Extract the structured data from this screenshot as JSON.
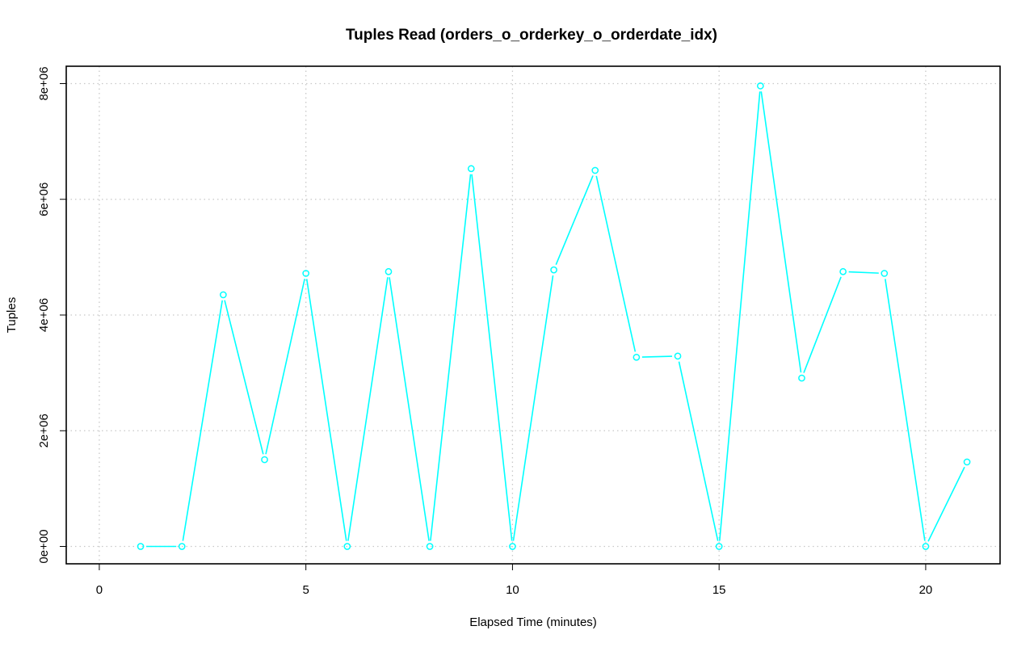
{
  "chart_data": {
    "type": "line",
    "title": "Tuples Read (orders_o_orderkey_o_orderdate_idx)",
    "xlabel": "Elapsed Time (minutes)",
    "ylabel": "Tuples",
    "xlim": [
      -0.8,
      21.8
    ],
    "ylim": [
      -300000,
      8300000
    ],
    "x_ticks": [
      0,
      5,
      10,
      15,
      20
    ],
    "x_tick_labels": [
      "0",
      "5",
      "10",
      "15",
      "20"
    ],
    "y_ticks": [
      0,
      2000000,
      4000000,
      6000000,
      8000000
    ],
    "y_tick_labels": [
      "0e+00",
      "2e+06",
      "4e+06",
      "6e+06",
      "8e+06"
    ],
    "grid": true,
    "series": [
      {
        "color": "#00ffff",
        "marker": "open-circle",
        "x": [
          1,
          2,
          3,
          4,
          5,
          6,
          7,
          8,
          9,
          10,
          11,
          12,
          13,
          14,
          15,
          16,
          17,
          18,
          19,
          20,
          21
        ],
        "y": [
          0,
          0,
          4350000,
          1500000,
          4720000,
          0,
          4750000,
          0,
          6530000,
          0,
          4780000,
          6500000,
          3270000,
          3290000,
          0,
          7960000,
          2910000,
          4750000,
          4720000,
          0,
          1460000
        ]
      }
    ]
  }
}
